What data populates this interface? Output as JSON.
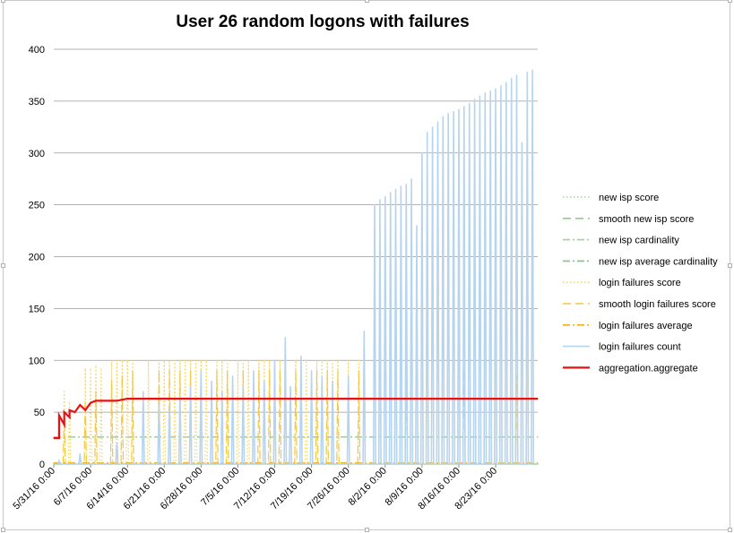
{
  "chart_data": {
    "type": "line",
    "title": "User 26 random logons with failures",
    "xlabel": "",
    "ylabel": "",
    "ylim": [
      0,
      400
    ],
    "y_ticks": [
      "0",
      "50",
      "100",
      "150",
      "200",
      "250",
      "300",
      "350",
      "400"
    ],
    "x_range": [
      "2016-05-31",
      "2016-08-31"
    ],
    "x_ticks": [
      {
        "date": "2016-05-31",
        "label": "5/31/16 0:00"
      },
      {
        "date": "2016-06-07",
        "label": "6/7/16 0:00"
      },
      {
        "date": "2016-06-14",
        "label": "6/14/16 0:00"
      },
      {
        "date": "2016-06-21",
        "label": "6/21/16 0:00"
      },
      {
        "date": "2016-06-28",
        "label": "6/28/16 0:00"
      },
      {
        "date": "2016-07-05",
        "label": "7/5/16 0:00"
      },
      {
        "date": "2016-07-12",
        "label": "7/12/16 0:00"
      },
      {
        "date": "2016-07-19",
        "label": "7/19/16 0:00"
      },
      {
        "date": "2016-07-26",
        "label": "7/26/16 0:00"
      },
      {
        "date": "2016-08-02",
        "label": "8/2/16 0:00"
      },
      {
        "date": "2016-08-09",
        "label": "8/9/16 0:00"
      },
      {
        "date": "2016-08-16",
        "label": "8/16/16 0:00"
      },
      {
        "date": "2016-08-23",
        "label": "8/23/16 0:00"
      }
    ],
    "grid": true,
    "legend_position": "right",
    "series": [
      {
        "name": "new isp score",
        "color": "#a8d8a0",
        "dash": "dotted",
        "x": [
          "2016-05-31",
          "2016-08-31"
        ],
        "y": [
          0,
          0
        ]
      },
      {
        "name": "smooth new isp score",
        "color": "#8fcf8a",
        "dash": "long-dash",
        "x": [
          "2016-05-31",
          "2016-08-31"
        ],
        "y": [
          0,
          0
        ]
      },
      {
        "name": "new isp cardinality",
        "color": "#9fd49a",
        "dash": "dash-dot",
        "x": [
          "2016-05-31",
          "2016-08-31"
        ],
        "y": [
          0,
          0
        ]
      },
      {
        "name": "new isp average cardinality",
        "color": "#7fc87a",
        "dash": "dash-dot",
        "x": [
          "2016-05-31",
          "2016-08-31"
        ],
        "y": [
          26,
          26
        ]
      },
      {
        "name": "login failures score",
        "color": "#f7d65a",
        "dash": "dotted",
        "x": [
          "2016-06-02",
          "2016-06-03",
          "2016-06-06",
          "2016-06-07",
          "2016-06-08",
          "2016-06-09",
          "2016-06-11",
          "2016-06-12",
          "2016-06-13",
          "2016-06-14",
          "2016-06-15",
          "2016-06-18",
          "2016-06-20",
          "2016-06-21",
          "2016-06-22",
          "2016-06-23",
          "2016-06-24",
          "2016-06-25",
          "2016-06-26",
          "2016-06-27",
          "2016-06-28",
          "2016-06-29",
          "2016-07-01",
          "2016-07-02",
          "2016-07-03",
          "2016-07-05",
          "2016-07-06",
          "2016-07-07",
          "2016-07-09",
          "2016-07-10",
          "2016-07-11",
          "2016-07-12",
          "2016-07-13",
          "2016-07-16",
          "2016-07-18",
          "2016-07-20",
          "2016-07-21",
          "2016-07-22",
          "2016-07-23",
          "2016-07-24",
          "2016-07-26",
          "2016-07-28",
          "2016-07-29",
          "2016-08-01",
          "2016-08-04",
          "2016-08-10",
          "2016-08-16",
          "2016-08-23",
          "2016-08-29"
        ],
        "y": [
          70,
          60,
          92,
          92,
          95,
          92,
          98,
          100,
          100,
          100,
          100,
          100,
          100,
          100,
          100,
          100,
          100,
          100,
          100,
          100,
          100,
          100,
          100,
          100,
          100,
          100,
          100,
          100,
          100,
          100,
          100,
          100,
          100,
          100,
          100,
          100,
          100,
          100,
          100,
          100,
          100,
          100,
          100,
          100,
          100,
          100,
          100,
          100,
          100
        ]
      },
      {
        "name": "smooth login failures score",
        "color": "#f3c744",
        "dash": "long-dash",
        "x": [
          "2016-06-02",
          "2016-06-06",
          "2016-06-08",
          "2016-06-11",
          "2016-06-13",
          "2016-06-15",
          "2016-06-20",
          "2016-06-22",
          "2016-06-24",
          "2016-06-26",
          "2016-06-28",
          "2016-07-01",
          "2016-07-03",
          "2016-07-06",
          "2016-07-09",
          "2016-07-11",
          "2016-07-13",
          "2016-07-16",
          "2016-07-20",
          "2016-07-22",
          "2016-07-24",
          "2016-07-28",
          "2016-08-06",
          "2016-08-17",
          "2016-08-27"
        ],
        "y": [
          50,
          60,
          70,
          80,
          85,
          90,
          90,
          90,
          90,
          90,
          90,
          90,
          90,
          90,
          90,
          90,
          90,
          90,
          90,
          90,
          90,
          90,
          80,
          90,
          85
        ]
      },
      {
        "name": "login failures average",
        "color": "#f0b020",
        "dash": "dash-dot",
        "x": [
          "2016-05-31",
          "2016-08-31"
        ],
        "y": [
          1,
          1
        ]
      },
      {
        "name": "login failures count",
        "color": "#b7d4ee",
        "dash": "solid",
        "x": [
          "2016-06-01",
          "2016-06-05",
          "2016-06-12",
          "2016-06-17",
          "2016-06-20",
          "2016-06-22",
          "2016-06-24",
          "2016-06-26",
          "2016-06-28",
          "2016-06-30",
          "2016-07-02",
          "2016-07-04",
          "2016-07-06",
          "2016-07-08",
          "2016-07-10",
          "2016-07-12",
          "2016-07-14",
          "2016-07-15",
          "2016-07-17",
          "2016-07-19",
          "2016-07-21",
          "2016-07-23",
          "2016-07-26",
          "2016-07-29",
          "2016-07-31",
          "2016-08-01",
          "2016-08-02",
          "2016-08-03",
          "2016-08-04",
          "2016-08-05",
          "2016-08-06",
          "2016-08-07",
          "2016-08-08",
          "2016-08-09",
          "2016-08-10",
          "2016-08-11",
          "2016-08-12",
          "2016-08-13",
          "2016-08-14",
          "2016-08-15",
          "2016-08-16",
          "2016-08-17",
          "2016-08-18",
          "2016-08-19",
          "2016-08-20",
          "2016-08-21",
          "2016-08-22",
          "2016-08-23",
          "2016-08-24",
          "2016-08-25",
          "2016-08-26",
          "2016-08-27",
          "2016-08-28",
          "2016-08-29",
          "2016-08-30"
        ],
        "y": [
          3,
          10,
          20,
          70,
          60,
          55,
          65,
          75,
          90,
          80,
          70,
          85,
          75,
          90,
          80,
          100,
          122,
          75,
          104,
          90,
          85,
          80,
          85,
          128,
          250,
          255,
          258,
          262,
          265,
          268,
          270,
          275,
          230,
          300,
          320,
          325,
          330,
          335,
          338,
          340,
          342,
          345,
          348,
          352,
          355,
          358,
          360,
          362,
          365,
          368,
          372,
          375,
          310,
          378,
          380
        ]
      },
      {
        "name": "aggregation.aggregate",
        "color": "#e8110f",
        "dash": "solid",
        "x": [
          "2016-05-31",
          "2016-06-01",
          "2016-06-01",
          "2016-06-02",
          "2016-06-02",
          "2016-06-03",
          "2016-06-03",
          "2016-06-04",
          "2016-06-05",
          "2016-06-06",
          "2016-06-07",
          "2016-06-08",
          "2016-06-10",
          "2016-06-12",
          "2016-06-13",
          "2016-06-14",
          "2016-08-31"
        ],
        "y": [
          25,
          25,
          47,
          38,
          50,
          45,
          52,
          50,
          57,
          52,
          59,
          61,
          61,
          61,
          62,
          63,
          63
        ]
      }
    ]
  }
}
